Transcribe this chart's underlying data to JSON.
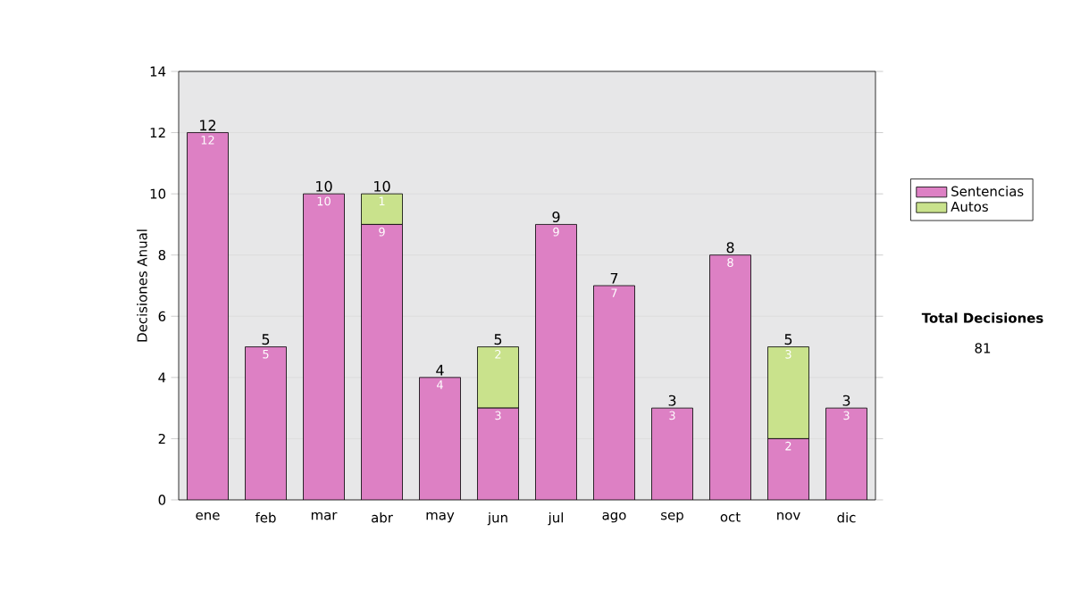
{
  "chart_data": {
    "type": "bar",
    "stacked": true,
    "ylabel": "Decisiones Anual",
    "categories": [
      "ene",
      "feb",
      "mar",
      "abr",
      "may",
      "jun",
      "jul",
      "ago",
      "sep",
      "oct",
      "nov",
      "dic"
    ],
    "series": [
      {
        "name": "Sentencias",
        "color": "#dd80c4",
        "values": [
          12,
          5,
          10,
          9,
          4,
          3,
          9,
          7,
          3,
          8,
          2,
          3
        ],
        "value_labels": [
          "12",
          "5",
          "10",
          "9",
          "4",
          "3",
          "9",
          "7",
          "3",
          "8",
          "2",
          "3"
        ]
      },
      {
        "name": "Autos",
        "color": "#c9e28c",
        "values": [
          0,
          0,
          0,
          1,
          0,
          2,
          0,
          0,
          0,
          0,
          3,
          0
        ],
        "value_labels": [
          null,
          null,
          null,
          "1",
          null,
          "2",
          null,
          null,
          null,
          null,
          "3",
          null
        ]
      }
    ],
    "totals": [
      "12",
      "5",
      "10",
      "10",
      "4",
      "5",
      "9",
      "7",
      "3",
      "8",
      "5",
      "3"
    ],
    "ylim": [
      0,
      14
    ],
    "yticks": [
      0,
      2,
      4,
      6,
      8,
      10,
      12,
      14
    ],
    "grid": "y",
    "legend": "right",
    "annotations": [
      "Total Decisiones",
      "81"
    ]
  }
}
